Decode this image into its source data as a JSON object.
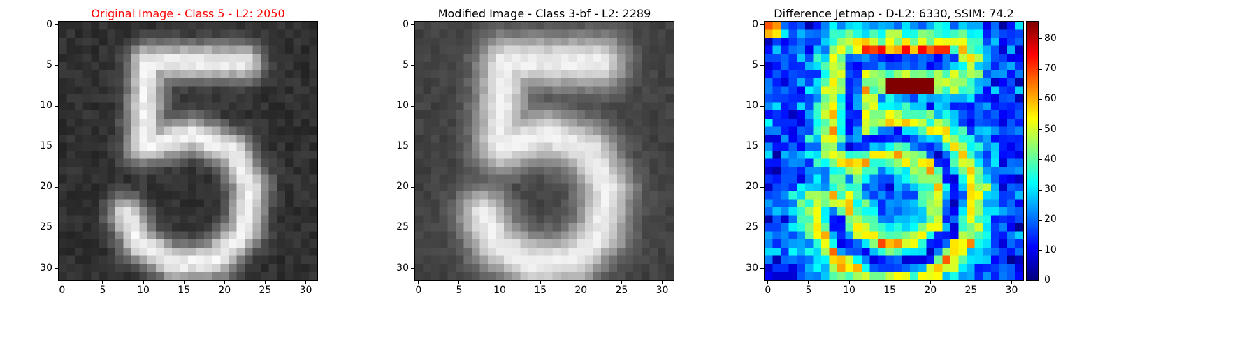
{
  "figure": {
    "panels": [
      {
        "title": "Original Image - Class 5 - L2: 2050",
        "title_color": "#ff0000",
        "colormap": "gray"
      },
      {
        "title": "Modified Image - Class 3-bf - L2: 2289",
        "title_color": "#000000",
        "colormap": "gray"
      },
      {
        "title": "Difference Jetmap - D-L2: 6330, SSIM: 74.2",
        "title_color": "#000000",
        "colormap": "jet"
      }
    ],
    "ticks": [
      "0",
      "5",
      "10",
      "15",
      "20",
      "25",
      "30"
    ],
    "tick_values": [
      0,
      5,
      10,
      15,
      20,
      25,
      30
    ],
    "colorbar": {
      "ticks": [
        "0",
        "10",
        "20",
        "30",
        "40",
        "50",
        "60",
        "70",
        "80"
      ],
      "tick_values": [
        0,
        10,
        20,
        30,
        40,
        50,
        60,
        70,
        80
      ],
      "range": [
        0,
        86
      ]
    }
  },
  "chart_data": [
    {
      "type": "heatmap",
      "title": "Original Image - Class 5 - L2: 2050",
      "grid": [
        32,
        32
      ],
      "xlim": [
        -0.5,
        31.5
      ],
      "ylim": [
        31.5,
        -0.5
      ],
      "colormap": "gray",
      "content": "handwritten digit 5"
    },
    {
      "type": "heatmap",
      "title": "Modified Image - Class 3-bf - L2: 2289",
      "grid": [
        32,
        32
      ],
      "xlim": [
        -0.5,
        31.5
      ],
      "ylim": [
        31.5,
        -0.5
      ],
      "colormap": "gray",
      "content": "blurred handwritten digit 5"
    },
    {
      "type": "heatmap",
      "title": "Difference Jetmap - D-L2: 6330, SSIM: 74.2",
      "grid": [
        32,
        32
      ],
      "xlim": [
        -0.5,
        31.5
      ],
      "ylim": [
        31.5,
        -0.5
      ],
      "colormap": "jet",
      "value_range": [
        0,
        86
      ],
      "content": "absolute difference map, max near 86 around rows 7-8, cols 15-19"
    }
  ]
}
